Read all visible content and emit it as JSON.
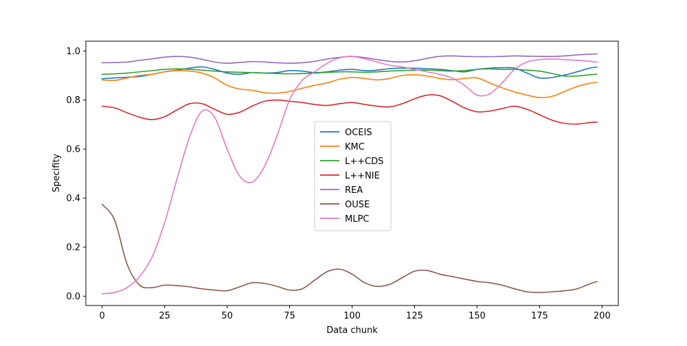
{
  "chart_data": {
    "type": "line",
    "xlabel": "Data chunk",
    "ylabel": "Specifity",
    "xlim": [
      -6.5,
      206.5
    ],
    "ylim": [
      -0.038,
      1.04
    ],
    "xticks": [
      0,
      25,
      50,
      75,
      100,
      125,
      150,
      175,
      200
    ],
    "yticks": [
      0.0,
      0.2,
      0.4,
      0.6,
      0.8,
      1.0
    ],
    "xtick_labels": [
      "0",
      "25",
      "50",
      "75",
      "100",
      "125",
      "150",
      "175",
      "200"
    ],
    "ytick_labels": [
      "0.0",
      "0.2",
      "0.4",
      "0.6",
      "0.8",
      "1.0"
    ],
    "grid": false,
    "legend_position": "center",
    "x": [
      0,
      5,
      10,
      15,
      20,
      25,
      30,
      35,
      40,
      45,
      50,
      55,
      60,
      65,
      70,
      75,
      80,
      85,
      90,
      95,
      100,
      105,
      110,
      115,
      120,
      125,
      130,
      135,
      140,
      145,
      150,
      155,
      160,
      165,
      170,
      175,
      180,
      185,
      190,
      195,
      198
    ],
    "series": [
      {
        "name": "OCEIS",
        "color": "#1f77b4",
        "values": [
          0.887,
          0.89,
          0.893,
          0.896,
          0.905,
          0.915,
          0.922,
          0.93,
          0.935,
          0.925,
          0.91,
          0.905,
          0.912,
          0.91,
          0.912,
          0.92,
          0.918,
          0.912,
          0.915,
          0.922,
          0.925,
          0.92,
          0.922,
          0.928,
          0.93,
          0.93,
          0.928,
          0.925,
          0.92,
          0.915,
          0.925,
          0.93,
          0.932,
          0.93,
          0.91,
          0.89,
          0.892,
          0.902,
          0.915,
          0.93,
          0.935
        ]
      },
      {
        "name": "KMC",
        "color": "#ff7f0e",
        "values": [
          0.882,
          0.88,
          0.89,
          0.9,
          0.905,
          0.915,
          0.92,
          0.918,
          0.91,
          0.89,
          0.86,
          0.845,
          0.84,
          0.83,
          0.828,
          0.835,
          0.848,
          0.86,
          0.87,
          0.885,
          0.892,
          0.888,
          0.882,
          0.888,
          0.9,
          0.903,
          0.898,
          0.888,
          0.883,
          0.888,
          0.89,
          0.87,
          0.85,
          0.833,
          0.82,
          0.81,
          0.815,
          0.835,
          0.855,
          0.868,
          0.872
        ]
      },
      {
        "name": "L++CDS",
        "color": "#2ca02c",
        "values": [
          0.905,
          0.907,
          0.91,
          0.915,
          0.92,
          0.925,
          0.927,
          0.925,
          0.922,
          0.918,
          0.915,
          0.913,
          0.912,
          0.91,
          0.908,
          0.907,
          0.908,
          0.91,
          0.913,
          0.915,
          0.915,
          0.913,
          0.915,
          0.918,
          0.92,
          0.922,
          0.922,
          0.92,
          0.918,
          0.92,
          0.925,
          0.927,
          0.925,
          0.925,
          0.922,
          0.918,
          0.908,
          0.898,
          0.898,
          0.903,
          0.905
        ]
      },
      {
        "name": "L++NIE",
        "color": "#d62728",
        "values": [
          0.775,
          0.768,
          0.748,
          0.73,
          0.72,
          0.732,
          0.76,
          0.785,
          0.785,
          0.762,
          0.742,
          0.75,
          0.775,
          0.795,
          0.8,
          0.795,
          0.79,
          0.782,
          0.778,
          0.785,
          0.79,
          0.782,
          0.775,
          0.772,
          0.785,
          0.805,
          0.82,
          0.818,
          0.795,
          0.768,
          0.752,
          0.755,
          0.765,
          0.775,
          0.762,
          0.74,
          0.718,
          0.705,
          0.702,
          0.708,
          0.71
        ]
      },
      {
        "name": "REA",
        "color": "#9467bd",
        "values": [
          0.952,
          0.953,
          0.955,
          0.962,
          0.968,
          0.975,
          0.978,
          0.975,
          0.966,
          0.955,
          0.95,
          0.953,
          0.957,
          0.955,
          0.952,
          0.95,
          0.952,
          0.958,
          0.967,
          0.974,
          0.978,
          0.973,
          0.965,
          0.958,
          0.955,
          0.96,
          0.97,
          0.978,
          0.98,
          0.978,
          0.977,
          0.977,
          0.978,
          0.98,
          0.979,
          0.978,
          0.978,
          0.98,
          0.984,
          0.987,
          0.988
        ]
      },
      {
        "name": "OUSE",
        "color": "#8c564b",
        "values": [
          0.375,
          0.31,
          0.13,
          0.045,
          0.035,
          0.045,
          0.043,
          0.038,
          0.03,
          0.025,
          0.022,
          0.038,
          0.055,
          0.052,
          0.04,
          0.025,
          0.03,
          0.065,
          0.1,
          0.11,
          0.09,
          0.055,
          0.04,
          0.048,
          0.075,
          0.102,
          0.105,
          0.09,
          0.08,
          0.07,
          0.06,
          0.055,
          0.045,
          0.03,
          0.018,
          0.015,
          0.018,
          0.022,
          0.03,
          0.05,
          0.06
        ]
      },
      {
        "name": "MLPC",
        "color": "#e377c2",
        "values": [
          0.01,
          0.015,
          0.035,
          0.08,
          0.16,
          0.3,
          0.48,
          0.65,
          0.755,
          0.73,
          0.6,
          0.49,
          0.465,
          0.53,
          0.655,
          0.8,
          0.88,
          0.915,
          0.95,
          0.972,
          0.978,
          0.968,
          0.955,
          0.942,
          0.935,
          0.925,
          0.915,
          0.905,
          0.89,
          0.86,
          0.82,
          0.825,
          0.87,
          0.925,
          0.955,
          0.965,
          0.967,
          0.965,
          0.962,
          0.958,
          0.955
        ]
      }
    ]
  }
}
